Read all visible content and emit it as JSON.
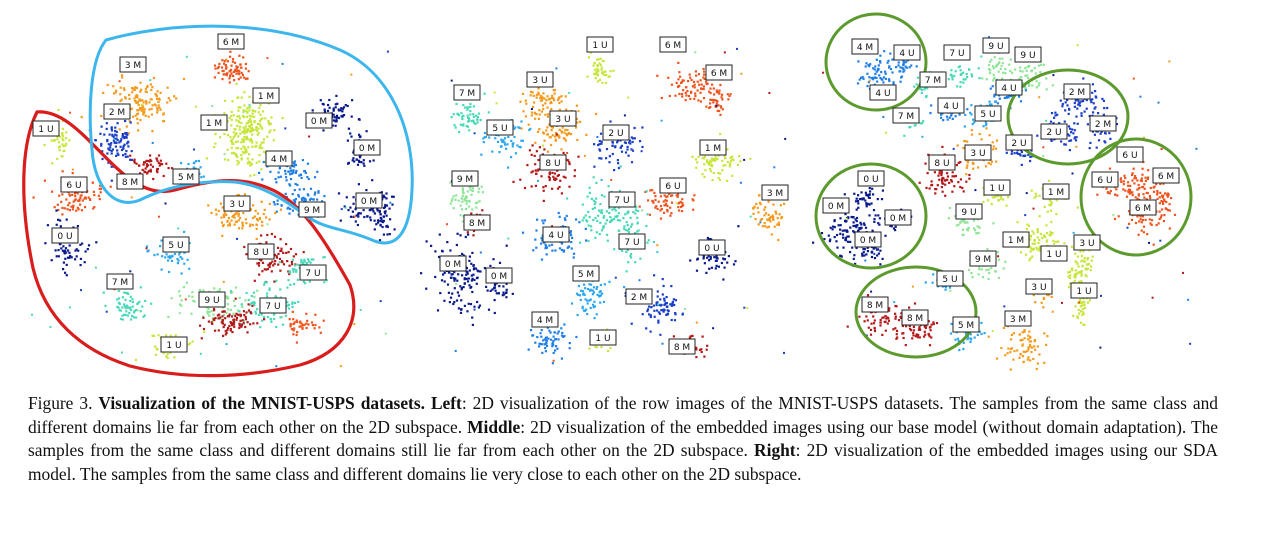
{
  "colors": {
    "0": "#0a1a8c",
    "1": "#c6e63a",
    "2": "#1a3ec8",
    "3": "#f59a1a",
    "4": "#1f7fe6",
    "5": "#2aa7f0",
    "6": "#f0541e",
    "7": "#48d9b9",
    "8": "#b51818",
    "9": "#8fe596",
    "left_outline": "#d91c1c",
    "left_outline_upper": "#3cb6ec",
    "right_outline": "#5c9a2e"
  },
  "panels": [
    {
      "name": "left",
      "labels": [
        "6 M",
        "3 M",
        "1 M",
        "2 M",
        "1 M",
        "0 M",
        "0 M",
        "4 M",
        "8 M",
        "5 M",
        "3 U",
        "0 M",
        "9 M",
        "1 U",
        "6 U",
        "0 U",
        "5 U",
        "8 U",
        "7 U",
        "7 M",
        "9 U",
        "7 U",
        "1 U"
      ]
    },
    {
      "name": "middle",
      "labels": [
        "1 U",
        "6 M",
        "6 M",
        "3 U",
        "7 M",
        "3 U",
        "5 U",
        "2 U",
        "1 M",
        "8 U",
        "6 U",
        "7 U",
        "3 M",
        "9 M",
        "8 M",
        "4 U",
        "7 U",
        "0 M",
        "0 M",
        "0 U",
        "5 M",
        "2 M",
        "4 M",
        "1 U",
        "8 M"
      ]
    },
    {
      "name": "right",
      "labels": [
        "4 M",
        "4 U",
        "7 U",
        "9 U",
        "9 U",
        "7 M",
        "4 U",
        "4 U",
        "2 M",
        "4 U",
        "5 U",
        "7 M",
        "2 U",
        "2 M",
        "3 U",
        "2 U",
        "8 U",
        "6 U",
        "6 M",
        "1 U",
        "1 M",
        "6 U",
        "0 U",
        "0 M",
        "9 U",
        "0 M",
        "6 M",
        "0 M",
        "1 M",
        "3 U",
        "1 U",
        "9 M",
        "5 U",
        "3 U",
        "1 U",
        "8 M",
        "8 M",
        "5 M",
        "3 M"
      ]
    }
  ],
  "caption": {
    "figure_num": "Figure 3. ",
    "title": "Visualization of the MNIST-USPS datasets.",
    "left_label": "Left",
    "left_text": ": 2D visualization of the row images of the MNIST-USPS datasets. The samples from the same class and different domains lie far from each other on the 2D subspace. ",
    "middle_label": "Middle",
    "middle_text": ": 2D visualization of the embedded images using our base model (without domain adaptation). The samples from the same class and different domains still lie far from each other on the 2D subspace. ",
    "right_label": "Right",
    "right_text": ": 2D visualization of the embedded images using our SDA model. The samples from the same class and different domains lie very close to each other on the 2D subspace."
  }
}
